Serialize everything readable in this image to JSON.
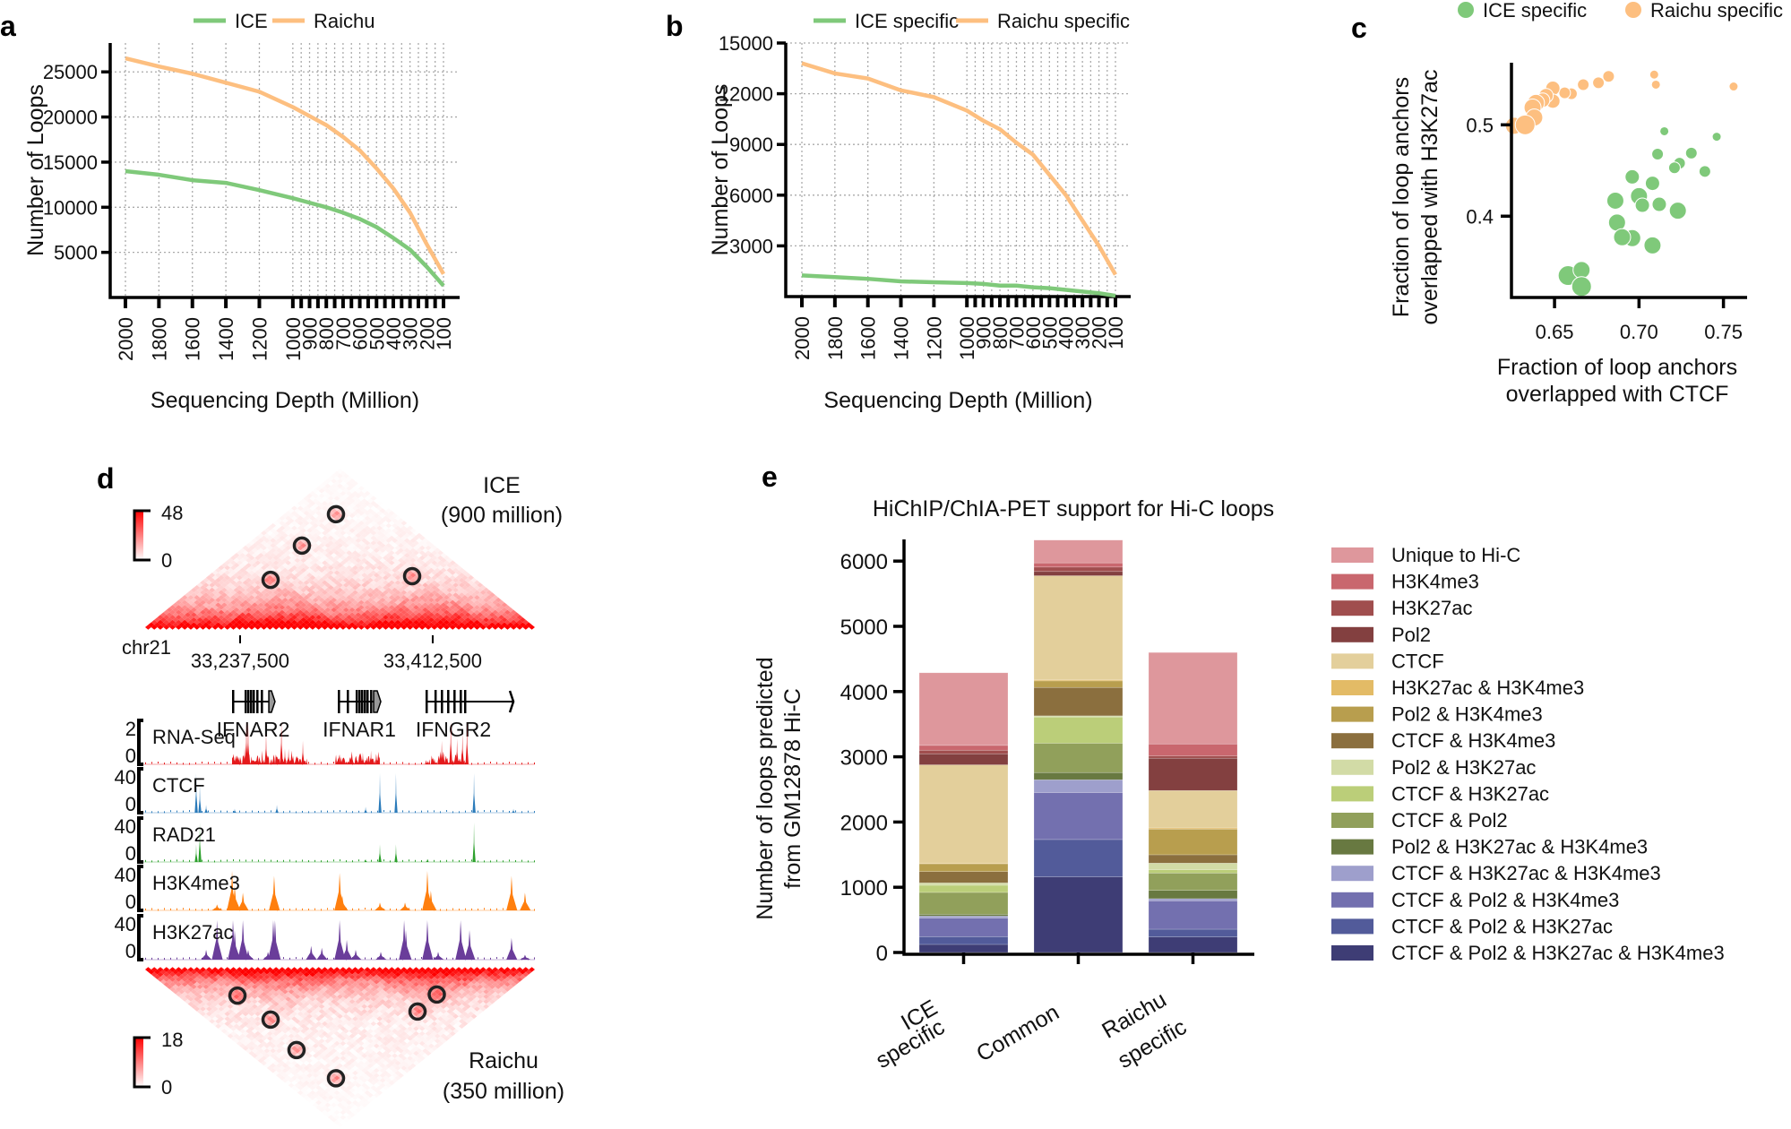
{
  "panel_labels": {
    "a": "a",
    "b": "b",
    "c": "c",
    "d": "d",
    "e": "e"
  },
  "chart_data": [
    {
      "id": "a",
      "type": "line",
      "xlabel": "Sequencing Depth (Million)",
      "ylabel": "Number of Loops",
      "x_reversed": true,
      "xlim": [
        2000,
        100
      ],
      "ylim": [
        0,
        28200
      ],
      "grid": true,
      "legend_position": "top",
      "xticks": [
        "2000",
        "1800",
        "1600",
        "1400",
        "1200",
        "1000",
        "900",
        "800",
        "700",
        "600",
        "500",
        "400",
        "300",
        "200",
        "100"
      ],
      "yticks": [
        "5000",
        "10000",
        "15000",
        "20000",
        "25000"
      ],
      "x": [
        2000,
        1800,
        1600,
        1400,
        1200,
        1000,
        900,
        800,
        700,
        600,
        500,
        400,
        300,
        200,
        100
      ],
      "series": [
        {
          "name": "ICE",
          "color": "#7fc97a",
          "values": [
            14000,
            13600,
            13000,
            12700,
            11900,
            11000,
            10500,
            10000,
            9400,
            8700,
            7800,
            6600,
            5300,
            3400,
            1300
          ]
        },
        {
          "name": "Raichu",
          "color": "#fdbf80",
          "values": [
            26500,
            25600,
            24800,
            23800,
            22800,
            21100,
            20100,
            19100,
            17800,
            16300,
            14300,
            12100,
            9400,
            5900,
            2600
          ]
        }
      ]
    },
    {
      "id": "b",
      "type": "line",
      "xlabel": "Sequencing Depth (Million)",
      "ylabel": "Number of Loops",
      "x_reversed": true,
      "xlim": [
        2000,
        100
      ],
      "ylim": [
        0,
        15000
      ],
      "grid": true,
      "legend_position": "top",
      "xticks": [
        "2000",
        "1800",
        "1600",
        "1400",
        "1200",
        "1000",
        "900",
        "800",
        "700",
        "600",
        "500",
        "400",
        "300",
        "200",
        "100"
      ],
      "yticks": [
        "3000",
        "6000",
        "9000",
        "12000",
        "15000"
      ],
      "x": [
        2000,
        1800,
        1600,
        1400,
        1200,
        1000,
        900,
        800,
        700,
        600,
        500,
        400,
        300,
        200,
        100
      ],
      "series": [
        {
          "name": "ICE specific",
          "color": "#7fc97a",
          "values": [
            1250,
            1150,
            1050,
            900,
            850,
            800,
            750,
            650,
            650,
            550,
            500,
            400,
            300,
            200,
            50
          ]
        },
        {
          "name": "Raichu specific",
          "color": "#fdbf80",
          "values": [
            13800,
            13200,
            12900,
            12200,
            11800,
            11000,
            10400,
            9900,
            9100,
            8400,
            7200,
            6000,
            4500,
            3000,
            1300
          ]
        }
      ]
    },
    {
      "id": "c",
      "type": "scatter",
      "xlabel": [
        "Fraction of loop anchors",
        "overlapped with CTCF"
      ],
      "ylabel": [
        "Fraction of loop anchors",
        "overlapped with H3K27ac"
      ],
      "xlim": [
        0.6245,
        0.764
      ],
      "ylim": [
        0.311,
        0.568
      ],
      "xticks": [
        "0.65",
        "0.70",
        "0.75"
      ],
      "yticks": [
        "0.4",
        "0.5"
      ],
      "legend_position": "top",
      "series": [
        {
          "name": "ICE specific",
          "color": "#7fc97a",
          "points": [
            [
              0.715,
              0.493,
              1
            ],
            [
              0.746,
              0.487,
              1
            ],
            [
              0.711,
              0.468,
              2
            ],
            [
              0.731,
              0.469,
              2
            ],
            [
              0.724,
              0.458,
              2
            ],
            [
              0.721,
              0.453,
              2
            ],
            [
              0.739,
              0.449,
              2
            ],
            [
              0.696,
              0.443,
              3
            ],
            [
              0.708,
              0.436,
              3
            ],
            [
              0.7,
              0.422,
              4
            ],
            [
              0.702,
              0.412,
              3
            ],
            [
              0.712,
              0.413,
              3
            ],
            [
              0.686,
              0.417,
              4
            ],
            [
              0.723,
              0.406,
              4
            ],
            [
              0.687,
              0.393,
              4
            ],
            [
              0.696,
              0.376,
              4
            ],
            [
              0.69,
              0.377,
              4
            ],
            [
              0.708,
              0.368,
              4
            ],
            [
              0.658,
              0.335,
              5
            ],
            [
              0.666,
              0.341,
              4
            ],
            [
              0.666,
              0.323,
              5
            ]
          ]
        },
        {
          "name": "Raichu specific",
          "color": "#fdbf80",
          "points": [
            [
              0.756,
              0.542,
              1
            ],
            [
              0.709,
              0.555,
              1
            ],
            [
              0.71,
              0.544,
              1
            ],
            [
              0.682,
              0.553,
              2
            ],
            [
              0.676,
              0.546,
              2
            ],
            [
              0.667,
              0.544,
              2
            ],
            [
              0.66,
              0.534,
              2
            ],
            [
              0.656,
              0.535,
              2
            ],
            [
              0.649,
              0.54,
              3
            ],
            [
              0.649,
              0.526,
              3
            ],
            [
              0.645,
              0.532,
              3
            ],
            [
              0.643,
              0.527,
              3
            ],
            [
              0.639,
              0.524,
              4
            ],
            [
              0.637,
              0.519,
              4
            ],
            [
              0.638,
              0.508,
              4
            ],
            [
              0.626,
              0.499,
              4
            ],
            [
              0.6326,
              0.5,
              5
            ]
          ]
        }
      ]
    },
    {
      "id": "d",
      "type": "heatmap",
      "chrom": "chr21",
      "region_bp": [
        33149600,
        33505300
      ],
      "ticks": [
        {
          "bp": 33237500,
          "label": "33,237,500"
        },
        {
          "bp": 33412500,
          "label": "33,412,500"
        }
      ],
      "top_map": {
        "name": "ICE",
        "depth": "(900 million)",
        "scale_max": "48",
        "scale_min": "0",
        "loops": [
          [
            33198400,
            33450800
          ],
          [
            33202500,
            33384800
          ],
          [
            33212300,
            33318100
          ],
          [
            33336800,
            33450800
          ]
        ]
      },
      "bottom_map": {
        "name": "Raichu",
        "depth": "(350 million)",
        "scale_max": "18",
        "scale_min": "0",
        "loops": [
          [
            33205800,
            33264400
          ],
          [
            33209000,
            33321400
          ],
          [
            33198400,
            33379100
          ],
          [
            33202500,
            33446700
          ],
          [
            33351500,
            33445900
          ],
          [
            33388100,
            33444300
          ]
        ]
      },
      "genes": [
        {
          "name": "IFNAR2",
          "start": 33230200,
          "end": 33268400,
          "exons": [
            33231000,
            33242400,
            33244800,
            33247300,
            33249700,
            33253000,
            33257100
          ],
          "box": [
            33263600,
            33268400
          ]
        },
        {
          "name": "IFNAR1",
          "start": 33327100,
          "end": 33364500,
          "exons": [
            33327100,
            33335200,
            33343300,
            33345800,
            33348200,
            33350700,
            33353100,
            33356400
          ],
          "box": [
            33358800,
            33364500
          ]
        },
        {
          "name": "IFNGR2",
          "start": 33406800,
          "end": 33485000,
          "exons": [
            33406800,
            33414900,
            33420700,
            33426400,
            33432100,
            33437800,
            33441800
          ],
          "box": null
        }
      ],
      "tracks": [
        {
          "name": "RNA-Seq",
          "max": "2",
          "min": "0",
          "vmax": 2,
          "color": "#e41a1c",
          "expressed": [
            [
              33230200,
              33299000
            ],
            [
              33324000,
              33364500
            ],
            [
              33405000,
              33441800
            ]
          ],
          "peaks": [
            [
              33243200,
              2.3
            ],
            [
              33244800,
              2.3
            ],
            [
              33261100,
              1.6
            ],
            [
              33275000,
              2.6
            ],
            [
              33278200,
              0.8
            ],
            [
              33281500,
              0.8
            ],
            [
              33294500,
              1.2
            ],
            [
              33241600,
              0.9
            ],
            [
              33420700,
              1.2
            ],
            [
              33428900,
              2.2
            ],
            [
              33434600,
              1.3
            ],
            [
              33439500,
              1.6
            ],
            [
              33443600,
              2.2
            ],
            [
              33349000,
              0.6
            ],
            [
              33356400,
              0.7
            ]
          ]
        },
        {
          "name": "CTCF",
          "max": "40",
          "min": "0",
          "vmax": 40,
          "color": "#2b7bba",
          "expressed": [],
          "peaks": [
            [
              33197600,
              40
            ],
            [
              33200900,
              28
            ],
            [
              33206600,
              8
            ],
            [
              33232600,
              4
            ],
            [
              33270900,
              8
            ],
            [
              33351500,
              6
            ],
            [
              33364500,
              40
            ],
            [
              33379100,
              40
            ],
            [
              33450000,
              40
            ],
            [
              33485800,
              4
            ]
          ]
        },
        {
          "name": "RAD21",
          "max": "40",
          "min": "0",
          "vmax": 40,
          "color": "#2ca02c",
          "expressed": [],
          "peaks": [
            [
              33197600,
              18
            ],
            [
              33200900,
              40
            ],
            [
              33364500,
              18
            ],
            [
              33379100,
              18
            ],
            [
              33450000,
              40
            ],
            [
              33407600,
              3
            ],
            [
              33351500,
              3
            ]
          ]
        },
        {
          "name": "H3K4me3",
          "max": "40",
          "min": "0",
          "vmax": 40,
          "color": "#ff7f0e",
          "expressed": [],
          "peaks": [
            [
              33230200,
              40
            ],
            [
              33232600,
              25
            ],
            [
              33240000,
              18
            ],
            [
              33268400,
              35
            ],
            [
              33327900,
              38
            ],
            [
              33330300,
              15
            ],
            [
              33364500,
              8
            ],
            [
              33387300,
              8
            ],
            [
              33407600,
              40
            ],
            [
              33410800,
              20
            ],
            [
              33484100,
              35
            ],
            [
              33496300,
              18
            ],
            [
              33216500,
              6
            ]
          ]
        },
        {
          "name": "H3K27ac",
          "max": "40",
          "min": "0",
          "vmax": 40,
          "color": "#6a3d9a",
          "expressed": [],
          "peaks": [
            [
              33216500,
              40
            ],
            [
              33206600,
              10
            ],
            [
              33231000,
              40
            ],
            [
              33232600,
              30
            ],
            [
              33240000,
              40
            ],
            [
              33244800,
              10
            ],
            [
              33267600,
              40
            ],
            [
              33269200,
              40
            ],
            [
              33262800,
              8
            ],
            [
              33302000,
              14
            ],
            [
              33311700,
              12
            ],
            [
              33327900,
              40
            ],
            [
              33334400,
              20
            ],
            [
              33342500,
              10
            ],
            [
              33365300,
              8
            ],
            [
              33386500,
              40
            ],
            [
              33388100,
              30
            ],
            [
              33407600,
              40
            ],
            [
              33417400,
              8
            ],
            [
              33437800,
              40
            ],
            [
              33445900,
              30
            ],
            [
              33484100,
              22
            ],
            [
              33496300,
              5
            ]
          ]
        }
      ]
    },
    {
      "id": "e",
      "type": "bar",
      "stacked": true,
      "title": "HiChIP/ChIA-PET support for Hi-C loops",
      "ylabel": [
        "Number of loops predicted",
        "from GM12878 Hi-C"
      ],
      "ylim": [
        0,
        6330
      ],
      "yticks": [
        "0",
        "1000",
        "2000",
        "3000",
        "4000",
        "5000",
        "6000"
      ],
      "categories": [
        [
          "ICE",
          "specific"
        ],
        [
          "Common"
        ],
        [
          "Raichu",
          "specific"
        ]
      ],
      "legend_position": "right",
      "series": [
        {
          "name": "Unique to Hi-C",
          "color": "#de979c",
          "values": [
            1113,
            349,
            1402
          ]
        },
        {
          "name": "H3K4me3",
          "color": "#c9676e",
          "values": [
            74,
            64,
            183
          ]
        },
        {
          "name": "H3K27ac",
          "color": "#a04e4e",
          "values": [
            55,
            68,
            36
          ]
        },
        {
          "name": "Pol2",
          "color": "#834040",
          "values": [
            169,
            65,
            495
          ]
        },
        {
          "name": "CTCF",
          "color": "#e3cf9b",
          "values": [
            1507,
            1594,
            573
          ]
        },
        {
          "name": "H3K27ac & H3K4me3",
          "color": "#e3bb66",
          "values": [
            10,
            18,
            18
          ]
        },
        {
          "name": "Pol2 & H3K4me3",
          "color": "#b89e4e",
          "values": [
            119,
            101,
            394
          ]
        },
        {
          "name": "CTCF & H3K4me3",
          "color": "#8b6f3e",
          "values": [
            174,
            435,
            128
          ]
        },
        {
          "name": "Pol2 & H3K27ac",
          "color": "#d2dba6",
          "values": [
            36,
            18,
            101
          ]
        },
        {
          "name": "CTCF & H3K27ac",
          "color": "#bbce79",
          "values": [
            110,
            403,
            51
          ]
        },
        {
          "name": "CTCF & Pol2",
          "color": "#91a05b",
          "values": [
            335,
            449,
            265
          ]
        },
        {
          "name": "Pol2 & H3K27ac & H3K4me3",
          "color": "#687941",
          "values": [
            27,
            110,
            128
          ]
        },
        {
          "name": "CTCF & H3K27ac & H3K4me3",
          "color": "#9e9fcc",
          "values": [
            32,
            197,
            33
          ]
        },
        {
          "name": "CTCF & Pol2 & H3K4me3",
          "color": "#7370af",
          "values": [
            284,
            719,
            435
          ]
        },
        {
          "name": "CTCF & Pol2 & H3K27ac",
          "color": "#525b9a",
          "values": [
            119,
            573,
            119
          ]
        },
        {
          "name": "CTCF & Pol2 & H3K27ac & H3K4me3",
          "color": "#3e3d75",
          "values": [
            124,
            1159,
            238
          ]
        }
      ]
    }
  ]
}
